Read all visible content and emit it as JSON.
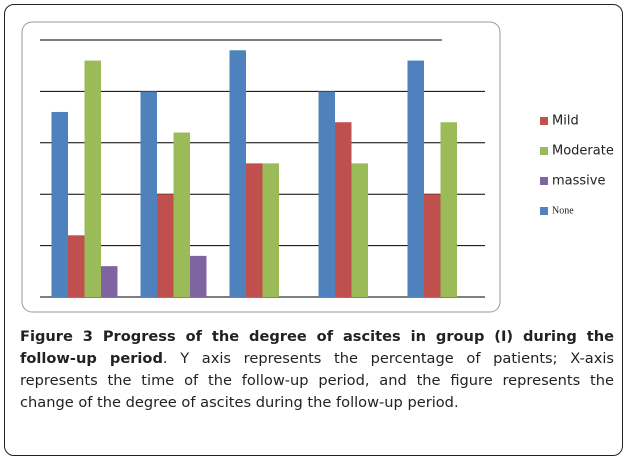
{
  "chart_data": {
    "type": "bar",
    "categories": [
      null,
      null,
      null,
      null,
      null
    ],
    "series": [
      {
        "name": "Mild",
        "color": "#c0504d",
        "values": [
          1.2,
          2.0,
          2.6,
          3.4,
          2.0
        ]
      },
      {
        "name": "Moderate",
        "color": "#9bbb59",
        "values": [
          4.6,
          3.2,
          2.6,
          2.6,
          3.4
        ]
      },
      {
        "name": "massive",
        "color": "#8064a2",
        "values": [
          0.6,
          0.8,
          0,
          0,
          0
        ]
      },
      {
        "name": "None",
        "color": "#4f81bd",
        "values": [
          3.6,
          4.0,
          4.8,
          4.0,
          4.6
        ]
      }
    ],
    "ylim": [
      0,
      5
    ],
    "yticks": [
      0,
      1,
      2,
      3,
      4,
      5
    ],
    "grid": true,
    "legend": "right"
  },
  "caption": {
    "bold": "Figure 3 Progress of the degree of ascites in group (I) during the follow-up period",
    "text": ". Y axis represents the percentage of patients; X-axis represents the time of the follow-up period, and the figure represents the change of the degree of ascites during the follow-up period."
  }
}
